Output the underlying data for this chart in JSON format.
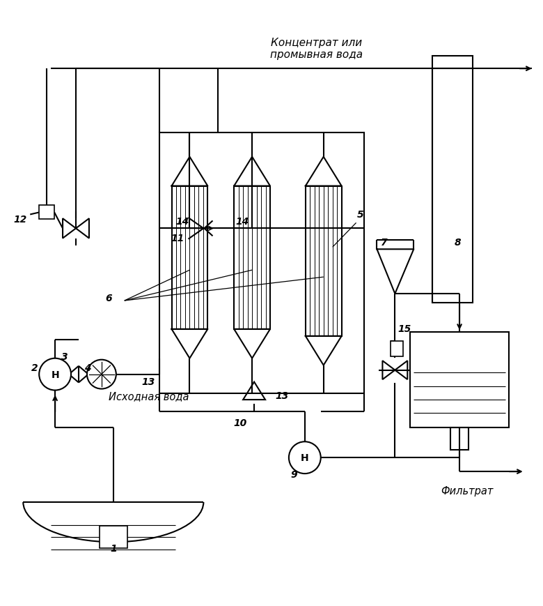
{
  "bg_color": "#ffffff",
  "line_color": "#000000",
  "fig_width": 7.8,
  "fig_height": 8.7,
  "dpi": 100,
  "labels": {
    "concentrate": "Концентрат или\nпромывная вода",
    "source_water": "Исходная вода",
    "filtrate": "Фильтрат"
  },
  "lw": 1.5,
  "lw_thin": 0.8,
  "lw_med": 1.2
}
